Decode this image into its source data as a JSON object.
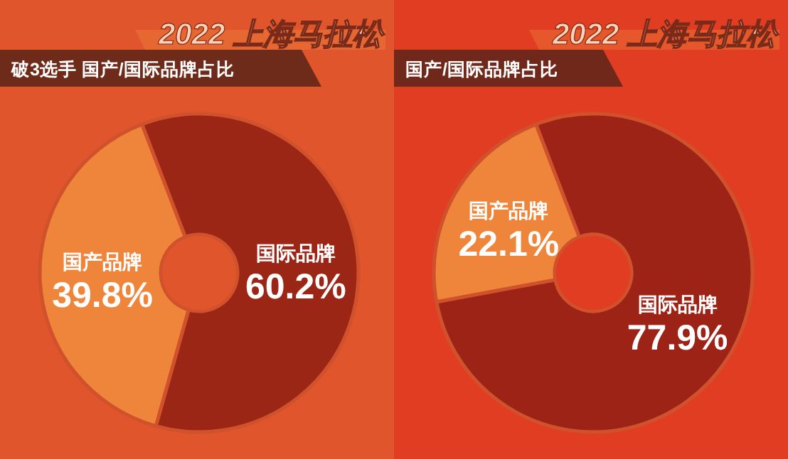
{
  "chart_data": [
    {
      "type": "donut",
      "title": "2022 上海马拉松",
      "subtitle": "破3选手 国产/国际品牌占比",
      "categories": [
        "国产品牌",
        "国际品牌"
      ],
      "values": [
        39.8,
        60.2
      ],
      "colors": [
        "#ef853a",
        "#9b2615"
      ],
      "value_labels": [
        "39.8%",
        "60.2%"
      ],
      "legend": false
    },
    {
      "type": "donut",
      "title": "2022 上海马拉松",
      "subtitle": "国产/国际品牌占比",
      "categories": [
        "国产品牌",
        "国际品牌"
      ],
      "values": [
        22.1,
        77.9
      ],
      "colors": [
        "#ef853a",
        "#9c2316"
      ],
      "value_labels": [
        "22.1%",
        "77.9%"
      ],
      "legend": false
    }
  ]
}
